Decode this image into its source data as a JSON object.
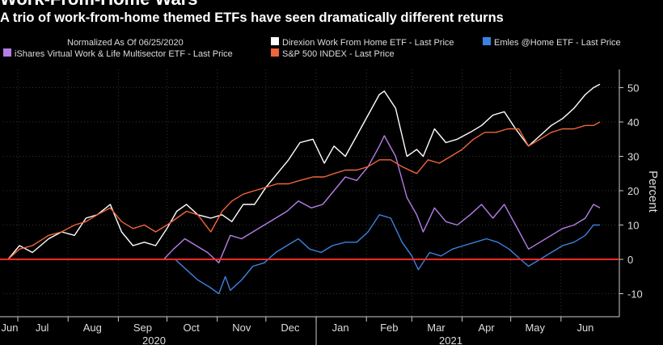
{
  "title": "Work-From-Home Wars",
  "subtitle": "A trio of work-from-home themed ETFs have seen dramatically different returns",
  "legend": {
    "note": "Normalized As Of 06/25/2020"
  },
  "colors": {
    "background": "#000000",
    "direxion": "#ffffff",
    "emles": "#3b82e0",
    "ishares": "#b47ee6",
    "sp500": "#f0653a",
    "zero_line": "#ff2a2a"
  },
  "chart_data": {
    "type": "line",
    "title": "Work-From-Home Wars",
    "ylabel": "Percent",
    "ylim": [
      -14,
      54
    ],
    "yticks": [
      -10,
      0,
      10,
      20,
      30,
      40,
      50
    ],
    "x_months": [
      "Jun",
      "Jul",
      "Aug",
      "Sep",
      "Oct",
      "Nov",
      "Dec",
      "Jan",
      "Feb",
      "Mar",
      "Apr",
      "May",
      "Jun"
    ],
    "x_years": [
      "2020",
      "2021"
    ],
    "reference_line": 0,
    "series": [
      {
        "name": "Direxion Work From Home ETF - Last Price",
        "color": "#ffffff",
        "points": [
          [
            "2020-06-25",
            0
          ],
          [
            "2020-07-02",
            4
          ],
          [
            "2020-07-10",
            2
          ],
          [
            "2020-07-20",
            6
          ],
          [
            "2020-07-28",
            8
          ],
          [
            "2020-08-05",
            7
          ],
          [
            "2020-08-12",
            12
          ],
          [
            "2020-08-19",
            13
          ],
          [
            "2020-08-27",
            16
          ],
          [
            "2020-09-03",
            8
          ],
          [
            "2020-09-10",
            4
          ],
          [
            "2020-09-17",
            5
          ],
          [
            "2020-09-24",
            4
          ],
          [
            "2020-10-01",
            9
          ],
          [
            "2020-10-07",
            14
          ],
          [
            "2020-10-13",
            16
          ],
          [
            "2020-10-20",
            13
          ],
          [
            "2020-10-28",
            12
          ],
          [
            "2020-11-04",
            13
          ],
          [
            "2020-11-10",
            11
          ],
          [
            "2020-11-17",
            16
          ],
          [
            "2020-11-24",
            16
          ],
          [
            "2020-12-01",
            21
          ],
          [
            "2020-12-08",
            25
          ],
          [
            "2020-12-15",
            29
          ],
          [
            "2020-12-22",
            34
          ],
          [
            "2020-12-30",
            35
          ],
          [
            "2021-01-06",
            28
          ],
          [
            "2021-01-12",
            33
          ],
          [
            "2021-01-19",
            30
          ],
          [
            "2021-01-26",
            36
          ],
          [
            "2021-02-02",
            42
          ],
          [
            "2021-02-09",
            48
          ],
          [
            "2021-02-12",
            49
          ],
          [
            "2021-02-19",
            44
          ],
          [
            "2021-02-26",
            30
          ],
          [
            "2021-03-04",
            32
          ],
          [
            "2021-03-08",
            30
          ],
          [
            "2021-03-15",
            38
          ],
          [
            "2021-03-22",
            34
          ],
          [
            "2021-03-29",
            35
          ],
          [
            "2021-04-06",
            37
          ],
          [
            "2021-04-13",
            39
          ],
          [
            "2021-04-20",
            42
          ],
          [
            "2021-04-27",
            43
          ],
          [
            "2021-05-04",
            38
          ],
          [
            "2021-05-12",
            33
          ],
          [
            "2021-05-19",
            36
          ],
          [
            "2021-05-26",
            39
          ],
          [
            "2021-06-02",
            41
          ],
          [
            "2021-06-09",
            44
          ],
          [
            "2021-06-16",
            48
          ],
          [
            "2021-06-21",
            50
          ],
          [
            "2021-06-25",
            51
          ]
        ]
      },
      {
        "name": "Emles @Home ETF - Last Price",
        "color": "#3b82e0",
        "points": [
          [
            "2020-10-06",
            0
          ],
          [
            "2020-10-13",
            -3
          ],
          [
            "2020-10-20",
            -6
          ],
          [
            "2020-10-27",
            -8
          ],
          [
            "2020-11-02",
            -10
          ],
          [
            "2020-11-06",
            -5
          ],
          [
            "2020-11-09",
            -9
          ],
          [
            "2020-11-16",
            -6
          ],
          [
            "2020-11-23",
            -2
          ],
          [
            "2020-11-30",
            -1
          ],
          [
            "2020-12-07",
            2
          ],
          [
            "2020-12-14",
            4
          ],
          [
            "2020-12-21",
            6
          ],
          [
            "2020-12-28",
            3
          ],
          [
            "2021-01-04",
            2
          ],
          [
            "2021-01-11",
            4
          ],
          [
            "2021-01-19",
            5
          ],
          [
            "2021-01-26",
            5
          ],
          [
            "2021-02-02",
            8
          ],
          [
            "2021-02-09",
            13
          ],
          [
            "2021-02-16",
            12
          ],
          [
            "2021-02-23",
            5
          ],
          [
            "2021-03-01",
            1
          ],
          [
            "2021-03-05",
            -3
          ],
          [
            "2021-03-12",
            2
          ],
          [
            "2021-03-19",
            1
          ],
          [
            "2021-03-26",
            3
          ],
          [
            "2021-04-02",
            4
          ],
          [
            "2021-04-09",
            5
          ],
          [
            "2021-04-16",
            6
          ],
          [
            "2021-04-23",
            5
          ],
          [
            "2021-04-30",
            3
          ],
          [
            "2021-05-07",
            0
          ],
          [
            "2021-05-12",
            -2
          ],
          [
            "2021-05-19",
            0
          ],
          [
            "2021-05-26",
            2
          ],
          [
            "2021-06-02",
            4
          ],
          [
            "2021-06-09",
            5
          ],
          [
            "2021-06-16",
            7
          ],
          [
            "2021-06-21",
            10
          ],
          [
            "2021-06-25",
            10
          ]
        ]
      },
      {
        "name": "iShares Virtual Work & Life Multisector ETF - Last Price",
        "color": "#b47ee6",
        "points": [
          [
            "2020-09-29",
            0
          ],
          [
            "2020-10-05",
            3
          ],
          [
            "2020-10-12",
            6
          ],
          [
            "2020-10-19",
            4
          ],
          [
            "2020-10-26",
            2
          ],
          [
            "2020-11-02",
            -1
          ],
          [
            "2020-11-09",
            7
          ],
          [
            "2020-11-16",
            6
          ],
          [
            "2020-11-23",
            8
          ],
          [
            "2020-11-30",
            10
          ],
          [
            "2020-12-07",
            12
          ],
          [
            "2020-12-14",
            14
          ],
          [
            "2020-12-21",
            17
          ],
          [
            "2020-12-29",
            15
          ],
          [
            "2021-01-05",
            16
          ],
          [
            "2021-01-12",
            20
          ],
          [
            "2021-01-19",
            24
          ],
          [
            "2021-01-26",
            23
          ],
          [
            "2021-02-02",
            27
          ],
          [
            "2021-02-09",
            33
          ],
          [
            "2021-02-12",
            36
          ],
          [
            "2021-02-19",
            30
          ],
          [
            "2021-02-26",
            18
          ],
          [
            "2021-03-04",
            13
          ],
          [
            "2021-03-08",
            8
          ],
          [
            "2021-03-15",
            15
          ],
          [
            "2021-03-22",
            11
          ],
          [
            "2021-03-29",
            10
          ],
          [
            "2021-04-06",
            13
          ],
          [
            "2021-04-13",
            16
          ],
          [
            "2021-04-20",
            12
          ],
          [
            "2021-04-27",
            16
          ],
          [
            "2021-05-04",
            10
          ],
          [
            "2021-05-12",
            3
          ],
          [
            "2021-05-19",
            5
          ],
          [
            "2021-05-26",
            7
          ],
          [
            "2021-06-02",
            9
          ],
          [
            "2021-06-09",
            10
          ],
          [
            "2021-06-16",
            12
          ],
          [
            "2021-06-21",
            16
          ],
          [
            "2021-06-25",
            15
          ]
        ]
      },
      {
        "name": "S&P 500 INDEX - Last Price",
        "color": "#f0653a",
        "points": [
          [
            "2020-06-25",
            0
          ],
          [
            "2020-07-02",
            3
          ],
          [
            "2020-07-10",
            4
          ],
          [
            "2020-07-20",
            7
          ],
          [
            "2020-07-28",
            8
          ],
          [
            "2020-08-05",
            10
          ],
          [
            "2020-08-12",
            11
          ],
          [
            "2020-08-19",
            13
          ],
          [
            "2020-08-27",
            15
          ],
          [
            "2020-09-03",
            11
          ],
          [
            "2020-09-10",
            9
          ],
          [
            "2020-09-17",
            10
          ],
          [
            "2020-09-24",
            8
          ],
          [
            "2020-10-01",
            10
          ],
          [
            "2020-10-07",
            12
          ],
          [
            "2020-10-13",
            14
          ],
          [
            "2020-10-20",
            13
          ],
          [
            "2020-10-28",
            8
          ],
          [
            "2020-11-04",
            14
          ],
          [
            "2020-11-10",
            17
          ],
          [
            "2020-11-17",
            19
          ],
          [
            "2020-11-24",
            20
          ],
          [
            "2020-12-01",
            21
          ],
          [
            "2020-12-08",
            22
          ],
          [
            "2020-12-15",
            22
          ],
          [
            "2020-12-22",
            23
          ],
          [
            "2020-12-30",
            24
          ],
          [
            "2021-01-06",
            24
          ],
          [
            "2021-01-12",
            25
          ],
          [
            "2021-01-19",
            26
          ],
          [
            "2021-01-26",
            26
          ],
          [
            "2021-02-02",
            27
          ],
          [
            "2021-02-09",
            29
          ],
          [
            "2021-02-16",
            29
          ],
          [
            "2021-02-23",
            27
          ],
          [
            "2021-03-04",
            25
          ],
          [
            "2021-03-11",
            29
          ],
          [
            "2021-03-18",
            28
          ],
          [
            "2021-03-25",
            30
          ],
          [
            "2021-04-01",
            32
          ],
          [
            "2021-04-08",
            35
          ],
          [
            "2021-04-15",
            37
          ],
          [
            "2021-04-22",
            37
          ],
          [
            "2021-04-29",
            38
          ],
          [
            "2021-05-06",
            38
          ],
          [
            "2021-05-12",
            33
          ],
          [
            "2021-05-19",
            35
          ],
          [
            "2021-05-26",
            37
          ],
          [
            "2021-06-02",
            38
          ],
          [
            "2021-06-09",
            38
          ],
          [
            "2021-06-16",
            39
          ],
          [
            "2021-06-21",
            39
          ],
          [
            "2021-06-25",
            40
          ]
        ]
      }
    ]
  }
}
